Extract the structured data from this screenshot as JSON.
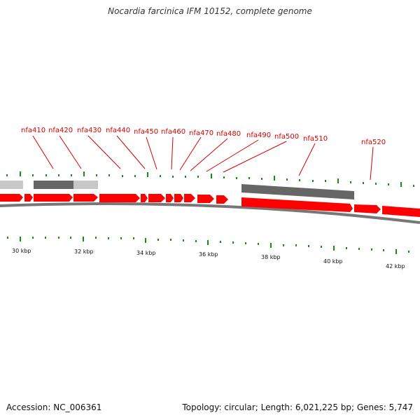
{
  "title": "Nocardia farcinica IFM 10152, complete genome",
  "footer": {
    "accession": "Accession: NC_006361",
    "summary": "Topology: circular; Length: 6,021,225 bp; Genes: 5,747"
  },
  "colors": {
    "gene": "#ff0000",
    "gene_label": "#d40000",
    "tick": "#1a8a1a",
    "backbone": "#777777",
    "block_light": "#c8c8c8",
    "block_dark": "#666666"
  },
  "gene_labels": [
    "nfa410",
    "nfa420",
    "nfa430",
    "nfa440",
    "nfa450",
    "nfa460",
    "nfa470",
    "nfa480",
    "nfa490",
    "nfa500",
    "nfa510",
    "nfa520"
  ],
  "axis_labels": [
    "30 kbp",
    "32 kbp",
    "34 kbp",
    "36 kbp",
    "38 kbp",
    "40 kbp",
    "42 kbp"
  ]
}
